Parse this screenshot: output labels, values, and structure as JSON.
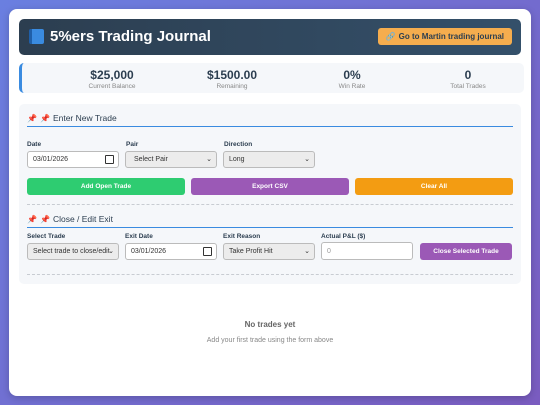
{
  "header": {
    "title": "5%ers Trading Journal",
    "link_button": "Go to Martin trading journal"
  },
  "stats": [
    {
      "value": "$25,000",
      "label": "Current Balance"
    },
    {
      "value": "$1500.00",
      "label": "Remaining"
    },
    {
      "value": "0%",
      "label": "Win Rate"
    },
    {
      "value": "0",
      "label": "Total Trades"
    }
  ],
  "new_trade": {
    "title": "Enter New Trade",
    "date_label": "Date",
    "date_value": "03/01/2026",
    "pair_label": "Pair",
    "pair_value": "Select Pair",
    "direction_label": "Direction",
    "direction_value": "Long",
    "buttons": {
      "add": "Add Open Trade",
      "export": "Export CSV",
      "clear": "Clear All"
    }
  },
  "close_trade": {
    "title": "Close / Edit Exit",
    "select_label": "Select Trade",
    "select_value": "Select trade to close/edit",
    "exit_date_label": "Exit Date",
    "exit_date_value": "03/01/2026",
    "exit_reason_label": "Exit Reason",
    "exit_reason_value": "Take Profit Hit",
    "pnl_label": "Actual P&L ($)",
    "pnl_placeholder": "0",
    "close_button": "Close Selected Trade"
  },
  "empty": {
    "title": "No trades yet",
    "subtitle": "Add your first trade using the form above"
  },
  "colors": {
    "add": "#2ecc71",
    "export": "#9b59b6",
    "clear": "#f39c12",
    "close": "#9b59b6",
    "header": "#2c3e50",
    "link_button": "#f5ad4e"
  }
}
